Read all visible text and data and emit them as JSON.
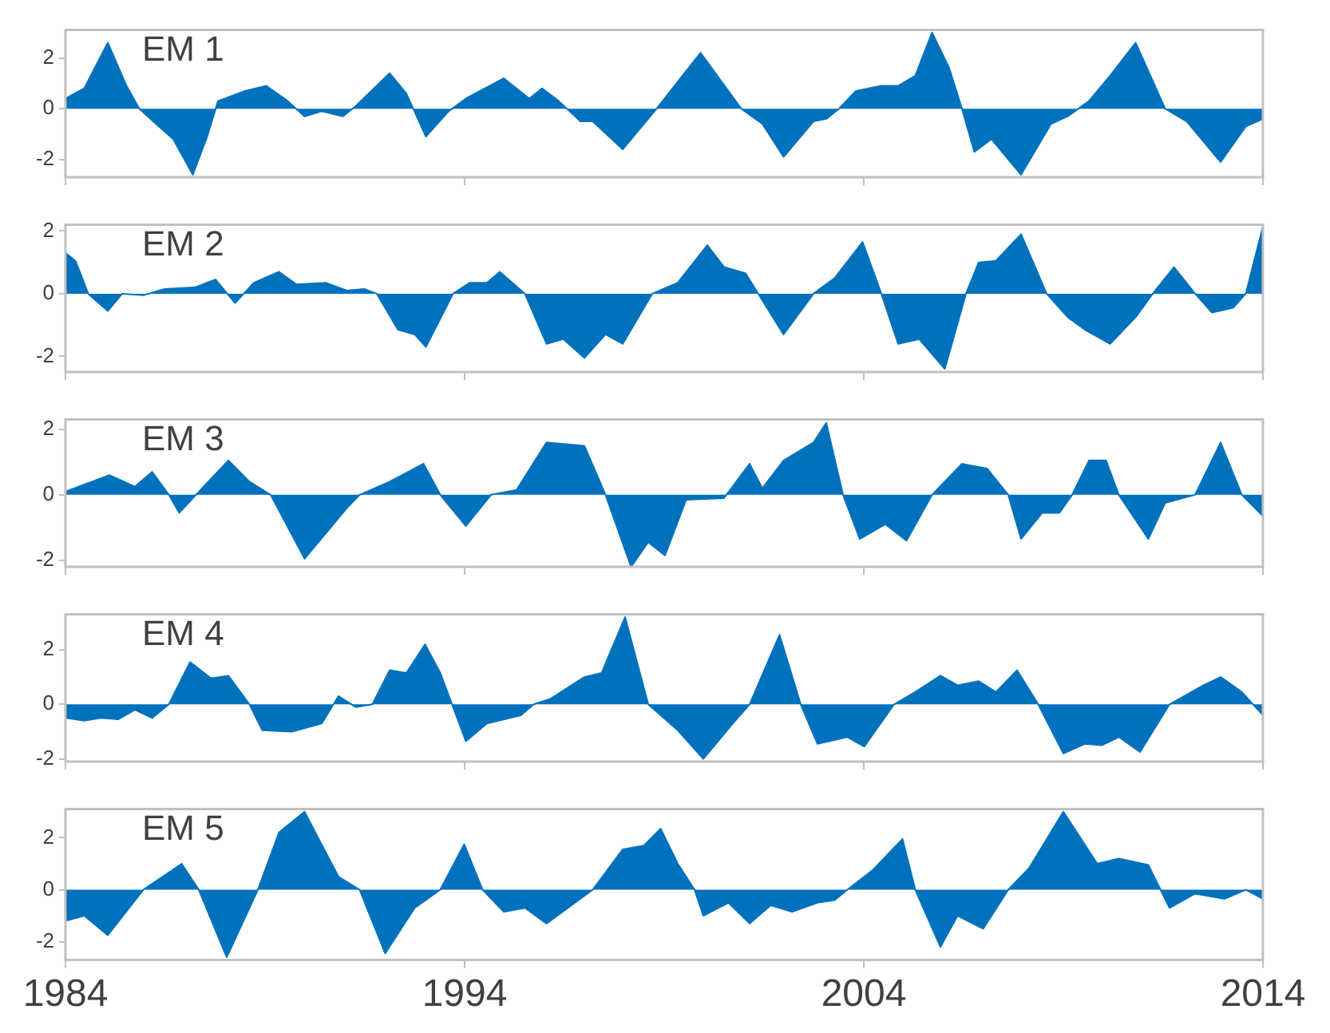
{
  "chart_data": [
    {
      "type": "area",
      "title": "EM 1",
      "xlim": [
        1984,
        2014
      ],
      "xticks": [
        1984,
        1994,
        2004,
        2014
      ],
      "ylim": [
        -2.7,
        3.1
      ],
      "yticks": [
        -2,
        0,
        2
      ],
      "grid": false,
      "legend": false,
      "tick_labels": "y",
      "series": [
        {
          "color": "#0072bd",
          "x": [
            1984.0,
            1984.47,
            1985.06,
            1985.53,
            1985.85,
            1986.27,
            1986.7,
            1987.19,
            1987.55,
            1987.82,
            1988.5,
            1989.03,
            1989.57,
            1989.99,
            1990.42,
            1990.95,
            1991.27,
            1992.12,
            1992.54,
            1993.03,
            1993.6,
            1994.03,
            1994.98,
            1995.62,
            1995.94,
            1996.36,
            1996.9,
            1997.21,
            1997.96,
            1998.81,
            1999.91,
            2000.93,
            2001.46,
            2001.99,
            2002.74,
            2003.06,
            2003.38,
            2003.8,
            2004.44,
            2004.86,
            2005.29,
            2005.71,
            2006.14,
            2006.46,
            2006.77,
            2007.2,
            2007.94,
            2008.69,
            2009.11,
            2009.64,
            2010.17,
            2010.81,
            2011.55,
            2012.09,
            2012.94,
            2013.57,
            2014.0
          ],
          "values": [
            0.4,
            0.8,
            2.6,
            0.9,
            0,
            -0.6,
            -1.2,
            -2.6,
            -1.1,
            0.3,
            0.7,
            0.9,
            0.3,
            -0.3,
            -0.1,
            -0.3,
            0.1,
            1.4,
            0.6,
            -1.1,
            -0.1,
            0.4,
            1.2,
            0.4,
            0.8,
            0.3,
            -0.5,
            -0.5,
            -1.6,
            0,
            2.2,
            0,
            -0.6,
            -1.9,
            -0.5,
            -0.4,
            0,
            0.7,
            0.9,
            0.9,
            1.3,
            3.0,
            1.6,
            0,
            -1.7,
            -1.2,
            -2.6,
            -0.6,
            -0.3,
            0.3,
            1.3,
            2.6,
            0,
            -0.5,
            -2.1,
            -0.7,
            -0.4
          ]
        }
      ]
    },
    {
      "type": "area",
      "title": "EM 2",
      "xlim": [
        1984,
        2014
      ],
      "xticks": [
        1984,
        1994,
        2004,
        2014
      ],
      "ylim": [
        -2.5,
        2.2
      ],
      "yticks": [
        -2,
        0,
        2
      ],
      "grid": false,
      "legend": false,
      "tick_labels": "y",
      "series": [
        {
          "color": "#0072bd",
          "x": [
            1984.0,
            1984.25,
            1984.57,
            1985.06,
            1985.42,
            1985.95,
            1986.49,
            1987.23,
            1987.76,
            1988.25,
            1988.72,
            1989.35,
            1989.78,
            1990.52,
            1991.05,
            1991.48,
            1991.8,
            1992.33,
            1992.75,
            1993.03,
            1993.71,
            1994.13,
            1994.56,
            1994.88,
            1995.51,
            1996.05,
            1996.47,
            1997.0,
            1997.53,
            1997.96,
            1998.7,
            1999.34,
            2000.08,
            2000.5,
            2001.04,
            2001.99,
            2002.74,
            2003.27,
            2003.97,
            2004.44,
            2004.86,
            2005.39,
            2006.03,
            2006.56,
            2006.88,
            2007.31,
            2007.94,
            2008.58,
            2009.11,
            2009.54,
            2010.17,
            2010.81,
            2011.24,
            2011.77,
            2012.3,
            2012.72,
            2013.25,
            2013.57,
            2014.0
          ],
          "values": [
            1.3,
            1.05,
            0,
            -0.55,
            0,
            -0.05,
            0.15,
            0.2,
            0.45,
            -0.3,
            0.35,
            0.7,
            0.3,
            0.35,
            0.1,
            0.15,
            0,
            -1.15,
            -1.3,
            -1.7,
            0,
            0.35,
            0.35,
            0.7,
            0,
            -1.6,
            -1.45,
            -2.05,
            -1.3,
            -1.6,
            0,
            0.35,
            1.55,
            0.85,
            0.65,
            -1.3,
            0,
            0.5,
            1.65,
            0,
            -1.6,
            -1.45,
            -2.4,
            0,
            1.0,
            1.05,
            1.9,
            0,
            -0.75,
            -1.15,
            -1.6,
            -0.75,
            0,
            0.85,
            0,
            -0.6,
            -0.45,
            0,
            2.15
          ]
        }
      ]
    },
    {
      "type": "area",
      "title": "EM 3",
      "xlim": [
        1984,
        2014
      ],
      "xticks": [
        1984,
        1994,
        2004,
        2014
      ],
      "ylim": [
        -2.2,
        2.3
      ],
      "yticks": [
        -2,
        0,
        2
      ],
      "grid": false,
      "legend": false,
      "tick_labels": "y",
      "series": [
        {
          "color": "#0072bd",
          "x": [
            1984.0,
            1985.1,
            1985.74,
            1986.17,
            1986.59,
            1986.85,
            1987.27,
            1988.08,
            1988.61,
            1989.14,
            1989.99,
            1991.05,
            1991.37,
            1992.12,
            1992.97,
            1993.39,
            1994.03,
            1994.66,
            1995.3,
            1996.05,
            1997.0,
            1997.53,
            1998.17,
            1998.6,
            1999.02,
            1999.55,
            2000.5,
            2001.14,
            2001.46,
            2001.99,
            2002.74,
            2003.06,
            2003.48,
            2003.9,
            2004.54,
            2005.07,
            2005.71,
            2006.46,
            2007.09,
            2007.62,
            2007.94,
            2008.47,
            2008.9,
            2009.22,
            2009.64,
            2010.07,
            2010.39,
            2011.13,
            2011.55,
            2011.98,
            2012.3,
            2012.94,
            2013.47,
            2014.0
          ],
          "values": [
            0.1,
            0.6,
            0.25,
            0.7,
            0,
            -0.55,
            0,
            1.05,
            0.4,
            0,
            -1.95,
            -0.4,
            0,
            0.4,
            0.95,
            0,
            -0.95,
            0,
            0.15,
            1.6,
            1.5,
            0,
            -2.2,
            -1.45,
            -1.85,
            -0.15,
            -0.1,
            0.95,
            0.2,
            1.05,
            1.6,
            2.2,
            0,
            -1.35,
            -0.9,
            -1.4,
            0,
            0.95,
            0.8,
            0,
            -1.35,
            -0.55,
            -0.55,
            0,
            1.05,
            1.05,
            0,
            -1.35,
            -0.25,
            -0.1,
            0,
            1.6,
            0,
            -0.65
          ]
        }
      ]
    },
    {
      "type": "area",
      "title": "EM 4",
      "xlim": [
        1984,
        2014
      ],
      "xticks": [
        1984,
        1994,
        2004,
        2014
      ],
      "ylim": [
        -2.1,
        3.3
      ],
      "yticks": [
        -2,
        0,
        2
      ],
      "grid": false,
      "legend": false,
      "tick_labels": "y",
      "series": [
        {
          "color": "#0072bd",
          "x": [
            1984.0,
            1984.47,
            1984.89,
            1985.32,
            1985.74,
            1986.17,
            1986.59,
            1987.12,
            1987.65,
            1988.08,
            1988.61,
            1988.93,
            1989.67,
            1990.42,
            1990.84,
            1991.27,
            1991.69,
            1992.12,
            1992.54,
            1993.01,
            1993.39,
            1994.03,
            1994.56,
            1995.41,
            1995.73,
            1996.15,
            1997.0,
            1997.43,
            1998.02,
            1998.6,
            1999.34,
            1999.98,
            2000.72,
            2001.14,
            2001.89,
            2002.42,
            2002.84,
            2003.59,
            2004.01,
            2004.76,
            2005.29,
            2005.92,
            2006.35,
            2006.88,
            2007.31,
            2007.84,
            2008.37,
            2009.0,
            2009.54,
            2009.96,
            2010.39,
            2010.92,
            2011.66,
            2012.51,
            2012.94,
            2013.47,
            2014.0
          ],
          "values": [
            -0.5,
            -0.6,
            -0.5,
            -0.55,
            -0.2,
            -0.5,
            0,
            1.55,
            0.95,
            1.05,
            0,
            -0.95,
            -1.0,
            -0.7,
            0.3,
            -0.1,
            0,
            1.25,
            1.15,
            2.2,
            1.15,
            -1.35,
            -0.7,
            -0.4,
            0,
            0.2,
            1.0,
            1.15,
            3.2,
            0,
            -0.95,
            -2.0,
            -0.7,
            0,
            2.55,
            0,
            -1.45,
            -1.2,
            -1.55,
            0,
            0.45,
            1.05,
            0.7,
            0.85,
            0.45,
            1.25,
            0,
            -1.8,
            -1.45,
            -1.5,
            -1.2,
            -1.75,
            0,
            0.7,
            1.0,
            0.45,
            -0.4
          ]
        }
      ]
    },
    {
      "type": "area",
      "title": "EM 5",
      "xlim": [
        1984,
        2014
      ],
      "xticks": [
        1984,
        1994,
        2004,
        2014
      ],
      "ylim": [
        -2.7,
        3.1
      ],
      "yticks": [
        -2,
        0,
        2
      ],
      "grid": false,
      "legend": false,
      "series": [
        {
          "color": "#0072bd",
          "x": [
            1984.0,
            1984.47,
            1985.06,
            1985.95,
            1986.91,
            1987.34,
            1988.04,
            1988.82,
            1989.35,
            1989.99,
            1990.84,
            1991.37,
            1992.01,
            1992.75,
            1993.39,
            1993.99,
            1994.45,
            1994.98,
            1995.51,
            1996.05,
            1997.21,
            1997.96,
            1998.49,
            1998.91,
            1999.34,
            1999.76,
            1999.98,
            2000.61,
            2001.14,
            2001.67,
            2002.21,
            2002.84,
            2003.27,
            2003.59,
            2004.22,
            2004.97,
            2005.29,
            2005.92,
            2006.35,
            2006.99,
            2007.62,
            2008.15,
            2009.0,
            2009.85,
            2010.39,
            2011.13,
            2011.66,
            2012.3,
            2013.04,
            2013.57,
            2014.0
          ],
          "values": [
            -1.2,
            -1.0,
            -1.75,
            0,
            1.0,
            0,
            -2.6,
            0,
            2.2,
            3.0,
            0.5,
            0,
            -2.45,
            -0.7,
            0,
            1.75,
            0,
            -0.85,
            -0.7,
            -1.3,
            0,
            1.55,
            1.7,
            2.35,
            1.0,
            0,
            -1.0,
            -0.5,
            -1.3,
            -0.6,
            -0.85,
            -0.5,
            -0.4,
            0,
            0.75,
            1.95,
            0,
            -2.2,
            -1.0,
            -1.5,
            0,
            0.85,
            3.0,
            1.0,
            1.2,
            0.95,
            -0.7,
            -0.15,
            -0.35,
            0,
            -0.35
          ]
        }
      ]
    }
  ]
}
